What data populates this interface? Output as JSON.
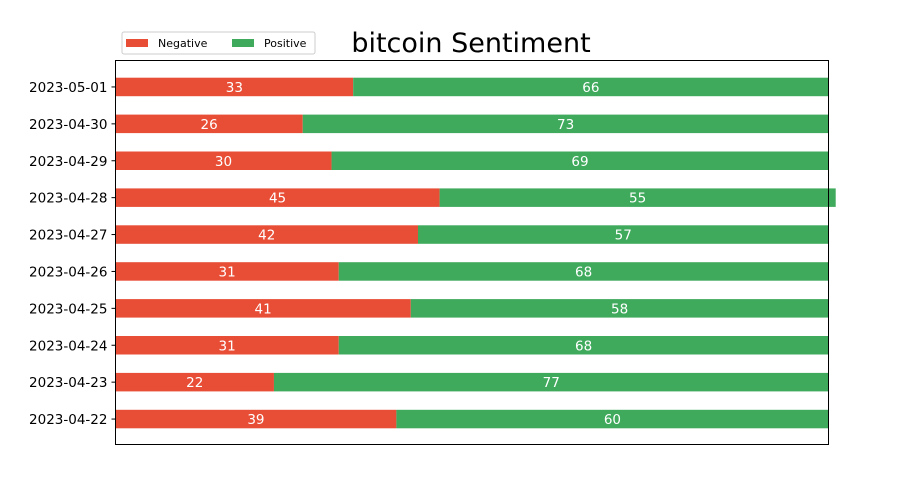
{
  "chart_data": {
    "type": "bar",
    "orientation": "horizontal",
    "stacked": true,
    "title": "bitcoin Sentiment",
    "xlabel": "",
    "ylabel": "",
    "xlim": [
      0,
      99
    ],
    "grid": false,
    "legend_position": "top-left",
    "categories": [
      "2023-05-01",
      "2023-04-30",
      "2023-04-29",
      "2023-04-28",
      "2023-04-27",
      "2023-04-26",
      "2023-04-25",
      "2023-04-24",
      "2023-04-23",
      "2023-04-22"
    ],
    "series": [
      {
        "name": "Negative",
        "color": "#e84d36",
        "values": [
          33,
          26,
          30,
          45,
          42,
          31,
          41,
          31,
          22,
          39
        ]
      },
      {
        "name": "Positive",
        "color": "#3fa95c",
        "values": [
          66,
          73,
          69,
          55,
          57,
          68,
          58,
          68,
          77,
          60
        ]
      }
    ]
  }
}
